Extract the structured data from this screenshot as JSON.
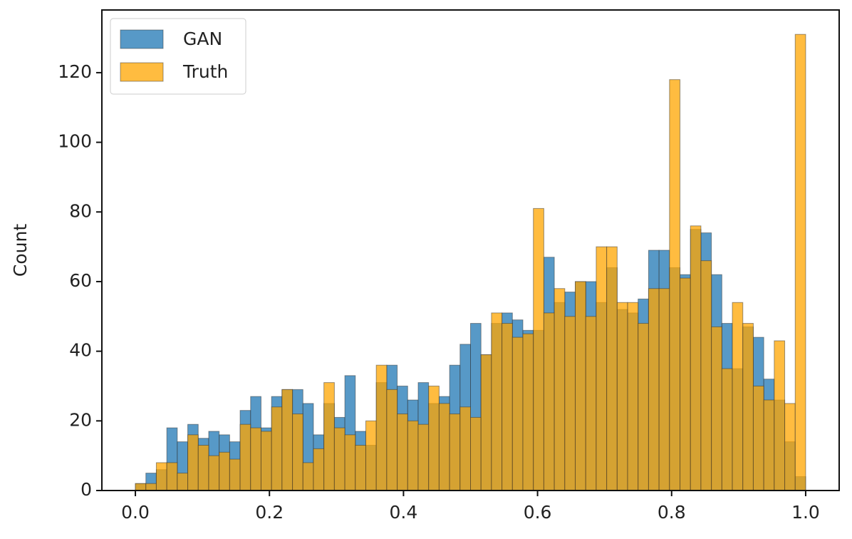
{
  "chart_data": {
    "type": "histogram",
    "ylabel": "Count",
    "bins": [
      0,
      0.015625,
      0.03125,
      0.046875,
      0.0625,
      0.078125,
      0.09375,
      0.109375,
      0.125,
      0.140625,
      0.15625,
      0.171875,
      0.1875,
      0.203125,
      0.21875,
      0.234375,
      0.25,
      0.265625,
      0.28125,
      0.296875,
      0.3125,
      0.328125,
      0.34375,
      0.359375,
      0.375,
      0.390625,
      0.40625,
      0.421875,
      0.4375,
      0.453125,
      0.46875,
      0.484375,
      0.5,
      0.515625,
      0.53125,
      0.546875,
      0.5625,
      0.578125,
      0.59375,
      0.609375,
      0.625,
      0.640625,
      0.65625,
      0.671875,
      0.6875,
      0.703125,
      0.71875,
      0.734375,
      0.75,
      0.765625,
      0.78125,
      0.796875,
      0.8125,
      0.828125,
      0.84375,
      0.859375,
      0.875,
      0.890625,
      0.90625,
      0.921875,
      0.9375,
      0.953125,
      0.96875,
      0.984375,
      1.0
    ],
    "series": [
      {
        "name": "GAN",
        "color": "#1f77b4",
        "values": [
          2,
          5,
          6,
          18,
          14,
          19,
          15,
          17,
          16,
          14,
          23,
          27,
          18,
          27,
          29,
          29,
          25,
          16,
          25,
          21,
          33,
          17,
          13,
          31,
          36,
          30,
          26,
          31,
          25,
          27,
          36,
          42,
          48,
          39,
          48,
          51,
          49,
          46,
          46,
          67,
          54,
          57,
          60,
          60,
          54,
          64,
          52,
          51,
          55,
          69,
          69,
          64,
          62,
          75,
          74,
          62,
          48,
          35,
          47,
          44,
          32,
          26,
          14,
          4
        ]
      },
      {
        "name": "Truth",
        "color": "#ffa500",
        "values": [
          2,
          2,
          8,
          8,
          5,
          16,
          13,
          10,
          11,
          9,
          19,
          18,
          17,
          24,
          29,
          22,
          8,
          12,
          31,
          18,
          16,
          13,
          20,
          36,
          29,
          22,
          20,
          19,
          30,
          25,
          22,
          24,
          21,
          39,
          51,
          48,
          44,
          45,
          81,
          51,
          58,
          50,
          60,
          50,
          70,
          70,
          54,
          54,
          48,
          58,
          58,
          118,
          61,
          76,
          66,
          47,
          35,
          54,
          48,
          30,
          26,
          43,
          25,
          131
        ]
      }
    ],
    "xlim": [
      -0.05,
      1.05
    ],
    "ylim": [
      0,
      138
    ],
    "xticks": [
      {
        "value": 0,
        "label": "0.0"
      },
      {
        "value": 0.2,
        "label": "0.2"
      },
      {
        "value": 0.4,
        "label": "0.4"
      },
      {
        "value": 0.6,
        "label": "0.6"
      },
      {
        "value": 0.8,
        "label": "0.8"
      },
      {
        "value": 1,
        "label": "1.0"
      }
    ],
    "yticks": [
      0,
      20,
      40,
      60,
      80,
      100,
      120
    ],
    "legend": "upper left"
  }
}
